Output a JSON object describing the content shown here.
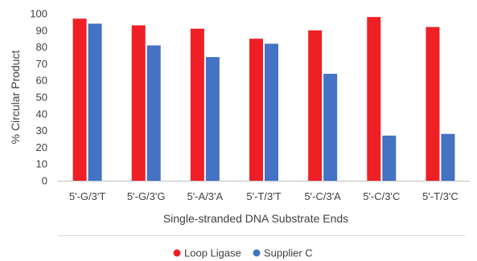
{
  "chart_data": {
    "type": "bar",
    "title": "",
    "xlabel": "Single-stranded DNA Substrate Ends",
    "ylabel": "% Circular Product",
    "ylim": [
      0,
      100
    ],
    "yticks": [
      0,
      10,
      20,
      30,
      40,
      50,
      60,
      70,
      80,
      90,
      100
    ],
    "grid": false,
    "legend_position": "bottom",
    "categories": [
      "5'-G/3'T",
      "5'-G/3'G",
      "5'-A/3'A",
      "5'-T/3'T",
      "5'-C/3'A",
      "5'-C/3'C",
      "5'-T/3'C"
    ],
    "series": [
      {
        "name": "Loop Ligase",
        "color": "#ee2026",
        "values": [
          97,
          93,
          91,
          85,
          90,
          98,
          92
        ]
      },
      {
        "name": "Supplier C",
        "color": "#4472c4",
        "values": [
          94,
          81,
          74,
          82,
          64,
          27,
          28
        ]
      }
    ]
  }
}
